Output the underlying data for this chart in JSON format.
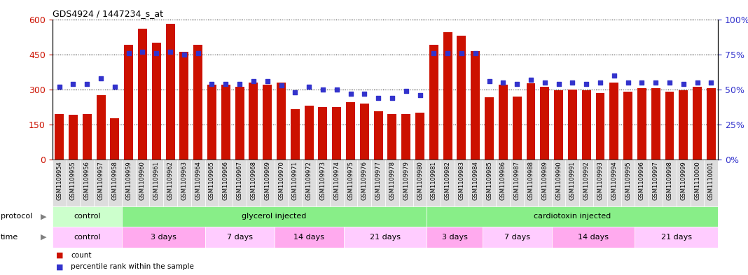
{
  "title": "GDS4924 / 1447234_s_at",
  "samples": [
    "GSM1109954",
    "GSM1109955",
    "GSM1109956",
    "GSM1109957",
    "GSM1109958",
    "GSM1109959",
    "GSM1109960",
    "GSM1109961",
    "GSM1109962",
    "GSM1109963",
    "GSM1109964",
    "GSM1109965",
    "GSM1109966",
    "GSM1109967",
    "GSM1109968",
    "GSM1109969",
    "GSM1109970",
    "GSM1109971",
    "GSM1109972",
    "GSM1109973",
    "GSM1109974",
    "GSM1109975",
    "GSM1109976",
    "GSM1109977",
    "GSM1109978",
    "GSM1109979",
    "GSM1109980",
    "GSM1109981",
    "GSM1109982",
    "GSM1109983",
    "GSM1109984",
    "GSM1109985",
    "GSM1109986",
    "GSM1109987",
    "GSM1109988",
    "GSM1109989",
    "GSM1109990",
    "GSM1109991",
    "GSM1109992",
    "GSM1109993",
    "GSM1109994",
    "GSM1109995",
    "GSM1109996",
    "GSM1109997",
    "GSM1109998",
    "GSM1109999",
    "GSM1110000",
    "GSM1110001"
  ],
  "bar_values": [
    195,
    190,
    195,
    275,
    175,
    490,
    560,
    500,
    580,
    460,
    490,
    320,
    320,
    310,
    330,
    320,
    330,
    215,
    230,
    225,
    225,
    245,
    240,
    205,
    195,
    195,
    200,
    490,
    545,
    530,
    465,
    265,
    320,
    270,
    325,
    310,
    295,
    300,
    295,
    285,
    330,
    290,
    305,
    305,
    290,
    295,
    310,
    305
  ],
  "pct_values": [
    52,
    54,
    54,
    58,
    52,
    76,
    77,
    76,
    77,
    75,
    76,
    54,
    54,
    54,
    56,
    56,
    53,
    48,
    52,
    50,
    50,
    47,
    47,
    44,
    44,
    49,
    46,
    76,
    76,
    76,
    76,
    56,
    55,
    54,
    57,
    55,
    54,
    55,
    54,
    55,
    60,
    55,
    55,
    55,
    55,
    54,
    55,
    55
  ],
  "bar_color": "#cc1100",
  "dot_color": "#3333cc",
  "ylim_left": [
    0,
    600
  ],
  "ylim_right": [
    0,
    100
  ],
  "yticks_left": [
    0,
    150,
    300,
    450,
    600
  ],
  "yticks_right": [
    0,
    25,
    50,
    75,
    100
  ],
  "protocol_groups": [
    {
      "label": "control",
      "start": 0,
      "end": 5,
      "color": "#ccffcc"
    },
    {
      "label": "glycerol injected",
      "start": 5,
      "end": 27,
      "color": "#88ee88"
    },
    {
      "label": "cardiotoxin injected",
      "start": 27,
      "end": 48,
      "color": "#88ee88"
    }
  ],
  "time_groups": [
    {
      "label": "control",
      "start": 0,
      "end": 5,
      "color": "#ffccff"
    },
    {
      "label": "3 days",
      "start": 5,
      "end": 11,
      "color": "#ffaaff"
    },
    {
      "label": "7 days",
      "start": 11,
      "end": 16,
      "color": "#ffccff"
    },
    {
      "label": "14 days",
      "start": 16,
      "end": 21,
      "color": "#ffaaff"
    },
    {
      "label": "21 days",
      "start": 21,
      "end": 27,
      "color": "#ffccff"
    },
    {
      "label": "3 days",
      "start": 27,
      "end": 31,
      "color": "#ffaaff"
    },
    {
      "label": "7 days",
      "start": 31,
      "end": 36,
      "color": "#ffccff"
    },
    {
      "label": "14 days",
      "start": 36,
      "end": 42,
      "color": "#ffaaff"
    },
    {
      "label": "21 days",
      "start": 42,
      "end": 48,
      "color": "#ffccff"
    }
  ],
  "bg_color": "#ffffff",
  "tick_label_color_left": "#cc1100",
  "tick_label_color_right": "#3333cc",
  "xtick_bg": "#dddddd"
}
